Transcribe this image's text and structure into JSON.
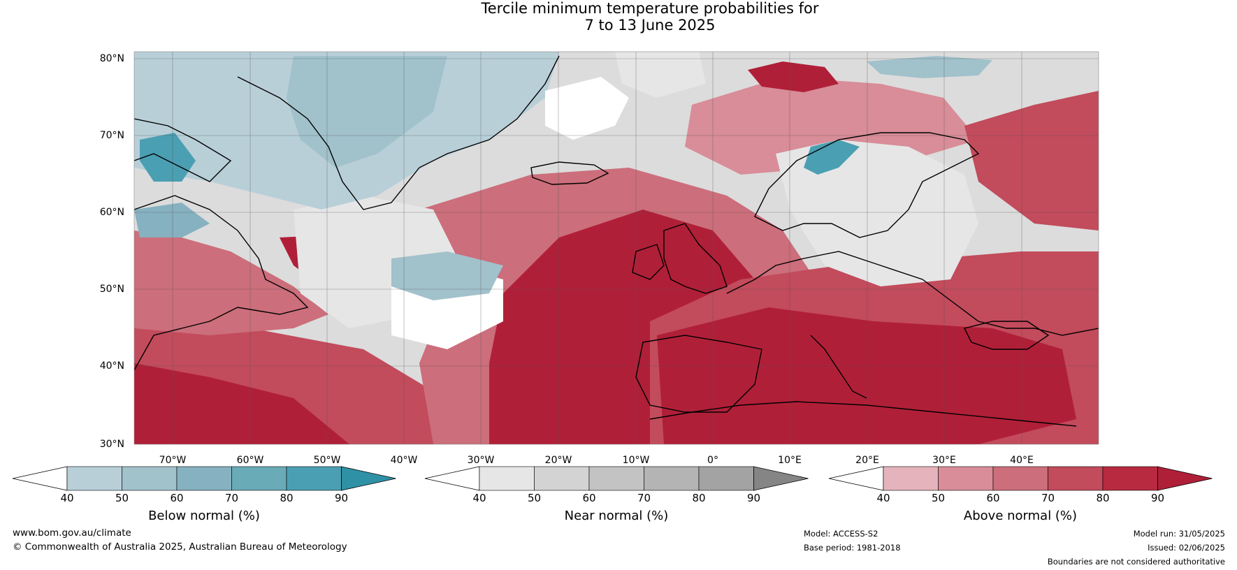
{
  "title": {
    "line1": "Tercile minimum temperature probabilities for",
    "line2": "7 to 13 June 2025"
  },
  "map": {
    "lat_labels": [
      "80°N",
      "70°N",
      "60°N",
      "50°N",
      "40°N",
      "30°N"
    ],
    "lon_labels": [
      "70°W",
      "60°W",
      "50°W",
      "40°W",
      "30°W",
      "20°W",
      "10°W",
      "0°",
      "10°E",
      "20°E",
      "30°E",
      "40°E"
    ],
    "colors": {
      "above": [
        "#e4b3bc",
        "#d88d98",
        "#cc6e7b",
        "#c24b5c",
        "#b82a3f",
        "#b01f38"
      ],
      "below": [
        "#b8cfd8",
        "#a1c1cb",
        "#86b1c0",
        "#6aabb8",
        "#4b9fb2",
        "#2f91a6"
      ],
      "near": [
        "#e6e6e6",
        "#d3d3d3",
        "#c3c3c3",
        "#b4b4b4",
        "#a3a3a3",
        "#858585"
      ]
    }
  },
  "colorbars": [
    {
      "label": "Below normal (%)",
      "ticks": [
        "40",
        "50",
        "60",
        "70",
        "80",
        "90"
      ],
      "colors": [
        "#b8cfd8",
        "#a1c1cb",
        "#86b1c0",
        "#6aabb8",
        "#4b9fb2",
        "#2f91a6"
      ]
    },
    {
      "label": "Near normal (%)",
      "ticks": [
        "40",
        "50",
        "60",
        "70",
        "80",
        "90"
      ],
      "colors": [
        "#e6e6e6",
        "#d3d3d3",
        "#c3c3c3",
        "#b4b4b4",
        "#a3a3a3",
        "#858585"
      ]
    },
    {
      "label": "Above normal (%)",
      "ticks": [
        "40",
        "50",
        "60",
        "70",
        "80",
        "90"
      ],
      "colors": [
        "#e4b3bc",
        "#d88d98",
        "#cc6e7b",
        "#c24b5c",
        "#b82a3f",
        "#b01f38"
      ]
    }
  ],
  "footer": {
    "website": "www.bom.gov.au/climate",
    "copyright": "© Commonwealth of Australia 2025, Australian Bureau of Meteorology",
    "model": "Model: ACCESS-S2",
    "base_period": "Base period: 1981-2018",
    "model_run": "Model run: 31/05/2025",
    "issued": "Issued: 02/06/2025",
    "disclaimer": "Boundaries are not considered authoritative"
  }
}
